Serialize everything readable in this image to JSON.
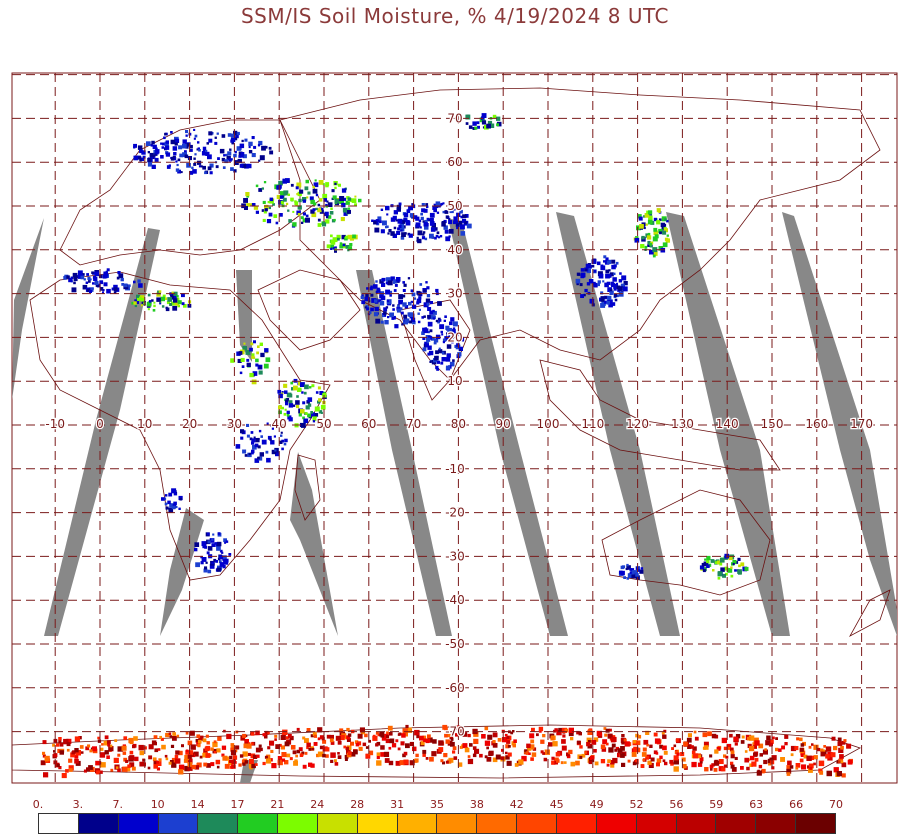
{
  "title": "SSM/IS Soil Moisture, % 4/19/2024 8 UTC",
  "map": {
    "longitude_labels": [
      "-10",
      "0",
      "10",
      "20",
      "30",
      "40",
      "50",
      "60",
      "70",
      "80",
      "90",
      "100",
      "110",
      "120",
      "130",
      "140",
      "150",
      "160",
      "170"
    ],
    "latitude_labels": [
      "70",
      "60",
      "50",
      "40",
      "30",
      "20",
      "10",
      "-10",
      "-20",
      "-30",
      "-40",
      "-50",
      "-60",
      "-70"
    ],
    "colors": {
      "border": "#7a1a1a",
      "grid": "#7a1a1a",
      "coastline": "#6b1010",
      "swath_gap": "#888888",
      "background": "#ffffff"
    }
  },
  "legend": {
    "unit": "%",
    "labels": [
      "0.",
      "3.",
      "7.",
      "10",
      "14",
      "17",
      "21",
      "24",
      "28",
      "31",
      "35",
      "38",
      "42",
      "45",
      "49",
      "52",
      "56",
      "59",
      "63",
      "66",
      "70"
    ],
    "colors": [
      "#ffffff",
      "#00008b",
      "#0000cd",
      "#1c3fd0",
      "#1e8a5a",
      "#22cc22",
      "#7cfc00",
      "#c8e000",
      "#ffd700",
      "#ffb000",
      "#ff8c00",
      "#ff6a00",
      "#ff4500",
      "#ff2000",
      "#ee0000",
      "#d40000",
      "#bb0000",
      "#a00000",
      "#8b0000",
      "#6b0000"
    ]
  }
}
